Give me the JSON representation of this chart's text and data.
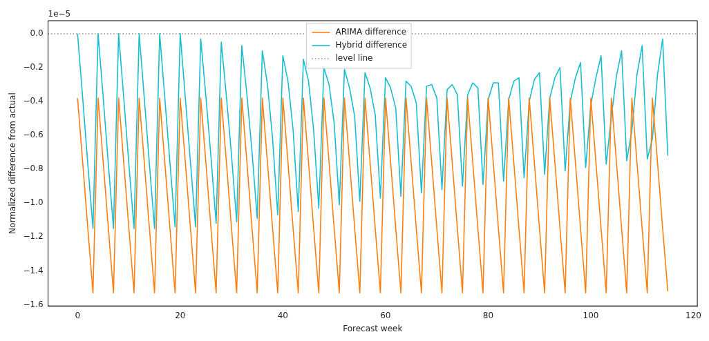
{
  "chart_data": {
    "type": "line",
    "xlabel": "Forecast week",
    "ylabel": "Normalized difference from actual",
    "annotations": [
      "1e−5"
    ],
    "x": [
      0,
      1,
      2,
      3,
      4,
      5,
      6,
      7,
      8,
      9,
      10,
      11,
      12,
      13,
      14,
      15,
      16,
      17,
      18,
      19,
      20,
      21,
      22,
      23,
      24,
      25,
      26,
      27,
      28,
      29,
      30,
      31,
      32,
      33,
      34,
      35,
      36,
      37,
      38,
      39,
      40,
      41,
      42,
      43,
      44,
      45,
      46,
      47,
      48,
      49,
      50,
      51,
      52,
      53,
      54,
      55,
      56,
      57,
      58,
      59,
      60,
      61,
      62,
      63,
      64,
      65,
      66,
      67,
      68,
      69,
      70,
      71,
      72,
      73,
      74,
      75,
      76,
      77,
      78,
      79,
      80,
      81,
      82,
      83,
      84,
      85,
      86,
      87,
      88,
      89,
      90,
      91,
      92,
      93,
      94,
      95,
      96,
      97,
      98,
      99,
      100,
      101,
      102,
      103,
      104,
      105,
      106,
      107,
      108,
      109,
      110,
      111,
      112,
      113,
      114,
      115
    ],
    "series": [
      {
        "name": "ARIMA difference",
        "color": "#ff7f0e",
        "values": [
          -0.38,
          -0.76,
          -1.15,
          -1.53,
          -0.38,
          -0.76,
          -1.15,
          -1.53,
          -0.38,
          -0.76,
          -1.15,
          -1.53,
          -0.38,
          -0.76,
          -1.15,
          -1.53,
          -0.38,
          -0.76,
          -1.15,
          -1.53,
          -0.38,
          -0.76,
          -1.15,
          -1.53,
          -0.38,
          -0.76,
          -1.15,
          -1.53,
          -0.38,
          -0.76,
          -1.15,
          -1.53,
          -0.38,
          -0.76,
          -1.15,
          -1.53,
          -0.38,
          -0.76,
          -1.15,
          -1.53,
          -0.38,
          -0.76,
          -1.15,
          -1.53,
          -0.38,
          -0.76,
          -1.15,
          -1.53,
          -0.38,
          -0.76,
          -1.15,
          -1.53,
          -0.38,
          -0.76,
          -1.15,
          -1.53,
          -0.38,
          -0.76,
          -1.15,
          -1.53,
          -0.38,
          -0.76,
          -1.15,
          -1.53,
          -0.38,
          -0.76,
          -1.15,
          -1.53,
          -0.38,
          -0.76,
          -1.15,
          -1.53,
          -0.38,
          -0.76,
          -1.15,
          -1.53,
          -0.38,
          -0.76,
          -1.15,
          -1.53,
          -0.38,
          -0.76,
          -1.15,
          -1.53,
          -0.38,
          -0.76,
          -1.15,
          -1.53,
          -0.38,
          -0.76,
          -1.15,
          -1.53,
          -0.38,
          -0.76,
          -1.15,
          -1.53,
          -0.38,
          -0.76,
          -1.15,
          -1.53,
          -0.38,
          -0.76,
          -1.15,
          -1.53,
          -0.38,
          -0.76,
          -1.15,
          -1.53,
          -0.38,
          -0.76,
          -1.15,
          -1.53,
          -0.38,
          -0.76,
          -1.15,
          -1.52
        ]
      },
      {
        "name": "Hybrid difference",
        "color": "#17becf",
        "values": [
          0.0,
          -0.38,
          -0.77,
          -1.15,
          0.0,
          -0.38,
          -0.77,
          -1.15,
          0.0,
          -0.38,
          -0.77,
          -1.15,
          0.0,
          -0.38,
          -0.77,
          -1.15,
          0.0,
          -0.38,
          -0.76,
          -1.14,
          0.0,
          -0.38,
          -0.76,
          -1.14,
          -0.03,
          -0.37,
          -0.73,
          -1.12,
          -0.05,
          -0.37,
          -0.72,
          -1.11,
          -0.07,
          -0.36,
          -0.7,
          -1.09,
          -0.1,
          -0.3,
          -0.62,
          -1.07,
          -0.13,
          -0.28,
          -0.57,
          -1.05,
          -0.15,
          -0.28,
          -0.57,
          -1.03,
          -0.2,
          -0.3,
          -0.53,
          -1.01,
          -0.21,
          -0.32,
          -0.49,
          -0.99,
          -0.23,
          -0.32,
          -0.48,
          -0.97,
          -0.26,
          -0.32,
          -0.44,
          -0.96,
          -0.28,
          -0.31,
          -0.41,
          -0.94,
          -0.31,
          -0.3,
          -0.38,
          -0.92,
          -0.33,
          -0.3,
          -0.36,
          -0.9,
          -0.36,
          -0.29,
          -0.32,
          -0.89,
          -0.39,
          -0.29,
          -0.29,
          -0.87,
          -0.39,
          -0.28,
          -0.26,
          -0.85,
          -0.4,
          -0.27,
          -0.23,
          -0.83,
          -0.38,
          -0.26,
          -0.2,
          -0.81,
          -0.4,
          -0.26,
          -0.17,
          -0.79,
          -0.42,
          -0.26,
          -0.13,
          -0.77,
          -0.49,
          -0.25,
          -0.1,
          -0.75,
          -0.57,
          -0.24,
          -0.07,
          -0.74,
          -0.62,
          -0.24,
          -0.03,
          -0.72
        ]
      }
    ],
    "ref_lines": [
      {
        "axis": "y",
        "value": 0,
        "label": "level line",
        "color": "#a08c8c",
        "line_style": "dotted"
      }
    ],
    "xlim": [
      -5.75,
      120.75
    ],
    "xticks": [
      0,
      20,
      40,
      60,
      80,
      100,
      120
    ],
    "ylim": [
      -1.607,
      0.077
    ],
    "yticks": [
      {
        "value": 0,
        "label": "0.0"
      },
      {
        "value": -0.2,
        "label": "−0.2"
      },
      {
        "value": -0.4,
        "label": "−0.4"
      },
      {
        "value": -0.6,
        "label": "−0.6"
      },
      {
        "value": -0.8,
        "label": "−0.8"
      },
      {
        "value": -1.0,
        "label": "−1.0"
      },
      {
        "value": -1.2,
        "label": "−1.2"
      },
      {
        "value": -1.4,
        "label": "−1.4"
      },
      {
        "value": -1.6,
        "label": "−1.6"
      }
    ],
    "legend": "top"
  }
}
